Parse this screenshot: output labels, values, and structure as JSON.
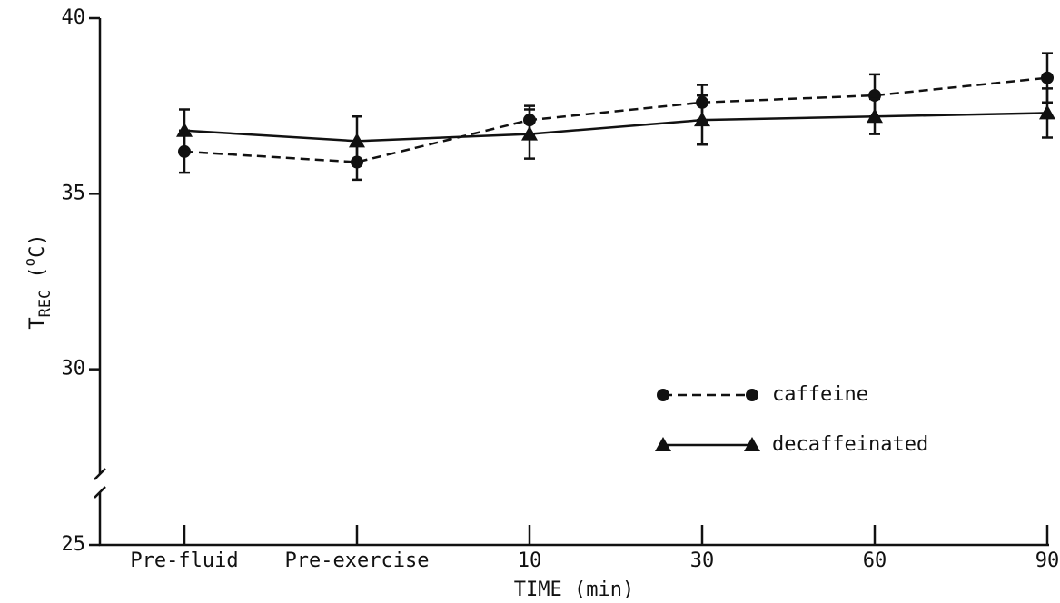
{
  "chart_data": {
    "type": "line",
    "xlabel": "TIME (min)",
    "ylabel": [
      "T",
      "REC",
      "(",
      "o",
      "C)"
    ],
    "categories": [
      "Pre-fluid",
      "Pre-exercise",
      "10",
      "30",
      "60",
      "90"
    ],
    "series": [
      {
        "name": "caffeine",
        "color": "#111111",
        "marker": "circle",
        "dash": true,
        "values": [
          36.2,
          35.9,
          37.1,
          37.6,
          37.8,
          38.3
        ],
        "errors": [
          0.6,
          0.5,
          0.4,
          0.5,
          0.6,
          0.7
        ]
      },
      {
        "name": "decaffeinated",
        "color": "#111111",
        "marker": "triangle",
        "dash": false,
        "values": [
          36.8,
          36.5,
          36.7,
          37.1,
          37.2,
          37.3
        ],
        "errors": [
          0.6,
          0.7,
          0.7,
          0.7,
          0.5,
          0.7
        ]
      }
    ],
    "ylim": [
      25,
      40
    ],
    "yticks": [
      25,
      30,
      35,
      40
    ],
    "axis_break": true
  }
}
